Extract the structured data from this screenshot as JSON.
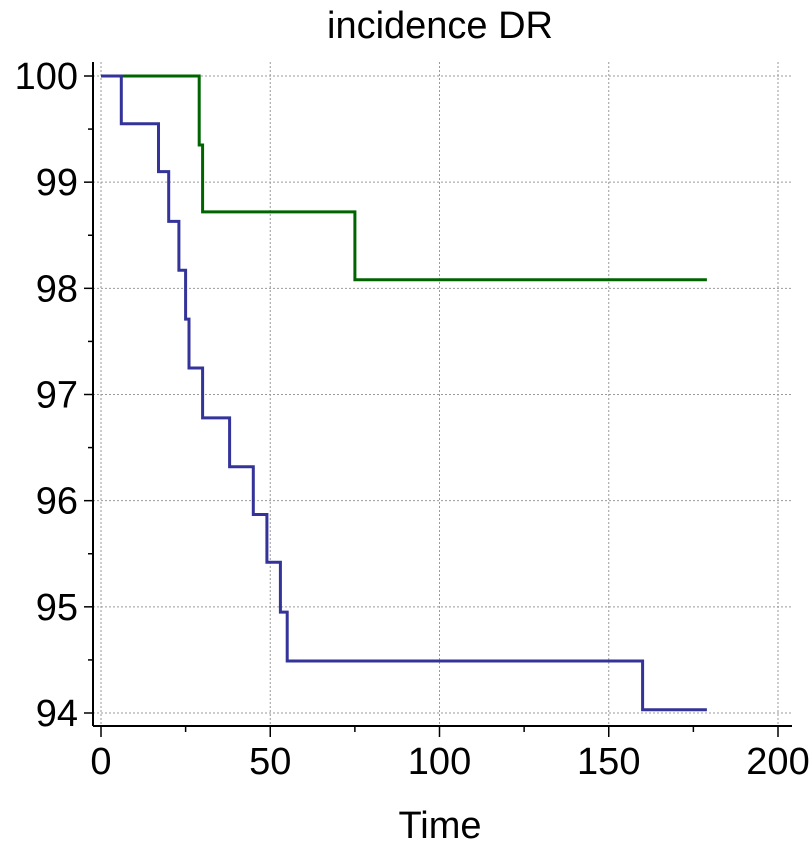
{
  "chart_data": {
    "type": "line",
    "step": true,
    "title": "incidence DR",
    "xlabel": "Time",
    "ylabel": "",
    "xlim": [
      0,
      200
    ],
    "ylim": [
      94,
      100
    ],
    "xticks": [
      0,
      50,
      100,
      150,
      200
    ],
    "yticks": [
      94,
      95,
      96,
      97,
      98,
      99,
      100
    ],
    "grid": true,
    "legend": "none",
    "series": [
      {
        "color": "#006400",
        "x": [
          0,
          29,
          30,
          75,
          179
        ],
        "y": [
          100,
          99.35,
          98.72,
          98.08,
          98.08
        ]
      },
      {
        "color": "#333399",
        "x": [
          0,
          6,
          17,
          20,
          23,
          25,
          26,
          30,
          38,
          45,
          49,
          53,
          55,
          160,
          179
        ],
        "y": [
          100,
          99.55,
          99.1,
          98.63,
          98.17,
          97.71,
          97.25,
          96.78,
          96.32,
          95.87,
          95.42,
          94.95,
          94.49,
          94.03,
          94.03
        ]
      }
    ]
  }
}
